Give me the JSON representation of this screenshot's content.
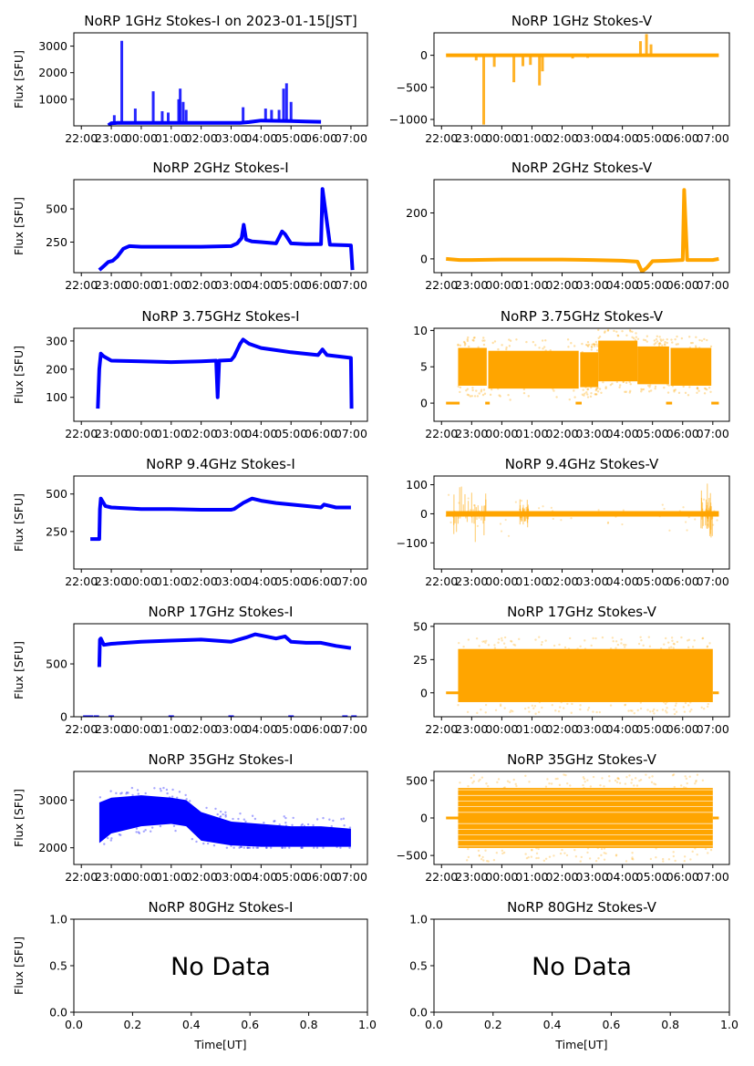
{
  "figure": {
    "main_title": "NoRP 1GHz Stokes-I on 2023-01-15[JST]",
    "ylabel": "Flux [SFU]",
    "xlabel": "Time[UT]",
    "no_data_text": "No Data"
  },
  "colors": {
    "stokes_i": "#0000ff",
    "stokes_v": "#ffa500"
  },
  "time_ticks": [
    "22:00",
    "23:00",
    "00:00",
    "01:00",
    "02:00",
    "03:00",
    "04:00",
    "05:00",
    "06:00",
    "07:00"
  ],
  "chart_data": [
    {
      "type": "scatter",
      "title": "NoRP 1GHz Stokes-I on 2023-01-15[JST]",
      "ylabel": "Flux [SFU]",
      "column": "left",
      "row": 0,
      "color_key": "stokes_i",
      "xlim_hours": [
        -0.25,
        9.55
      ],
      "ylim": [
        0,
        3500
      ],
      "yticks": [
        1000,
        2000,
        3000
      ],
      "x_start_hour": 0.9,
      "x_end_hour": 8.0,
      "series": [
        {
          "name": "baseline",
          "x": [
            0.9,
            1.0,
            1.2,
            1.5,
            2.0,
            2.5,
            3.0,
            3.6,
            4.0,
            4.5,
            5.0,
            5.3,
            5.6,
            6.0,
            6.5,
            7.0,
            7.5,
            8.0
          ],
          "y": [
            20,
            100,
            110,
            110,
            110,
            110,
            110,
            110,
            110,
            110,
            110,
            110,
            140,
            200,
            190,
            180,
            160,
            150
          ]
        },
        {
          "name": "flares",
          "x": [
            1.1,
            1.35,
            1.8,
            2.4,
            2.7,
            2.9,
            3.25,
            3.3,
            3.4,
            3.5,
            5.4,
            6.15,
            6.35,
            6.6,
            6.75,
            6.85,
            7.0
          ],
          "y": [
            400,
            3200,
            650,
            1300,
            550,
            500,
            1000,
            1400,
            900,
            600,
            700,
            650,
            600,
            600,
            1400,
            1600,
            900
          ]
        }
      ]
    },
    {
      "type": "scatter",
      "title": "NoRP 1GHz Stokes-V",
      "ylabel": "",
      "column": "right",
      "row": 0,
      "color_key": "stokes_v",
      "xlim_hours": [
        -0.25,
        9.55
      ],
      "ylim": [
        -1100,
        350
      ],
      "yticks": [
        -1000,
        -500,
        0
      ],
      "x_start_hour": 0.15,
      "x_end_hour": 9.2,
      "series": [
        {
          "name": "baseline",
          "x": [
            0.15,
            9.2
          ],
          "y": [
            0,
            0
          ]
        },
        {
          "name": "bursts",
          "x": [
            1.15,
            1.4,
            1.75,
            2.4,
            2.7,
            2.95,
            3.25,
            3.35,
            4.35,
            4.85,
            6.6,
            6.8,
            6.95
          ],
          "y": [
            -80,
            -1080,
            -180,
            -420,
            -170,
            -150,
            -470,
            -250,
            -50,
            -40,
            220,
            330,
            170
          ]
        }
      ]
    },
    {
      "type": "scatter",
      "title": "NoRP 2GHz Stokes-I",
      "ylabel": "Flux [SFU]",
      "column": "left",
      "row": 1,
      "color_key": "stokes_i",
      "xlim_hours": [
        -0.25,
        9.55
      ],
      "ylim": [
        20,
        720
      ],
      "yticks": [
        250,
        500
      ],
      "series": [
        {
          "name": "flux",
          "x": [
            0.6,
            0.75,
            0.9,
            1.05,
            1.2,
            1.4,
            1.6,
            2.0,
            3.0,
            4.0,
            5.0,
            5.2,
            5.35,
            5.42,
            5.5,
            5.7,
            6.0,
            6.5,
            6.7,
            6.8,
            7.0,
            7.5,
            8.0,
            8.05,
            8.3,
            9.0,
            9.05
          ],
          "y": [
            40,
            70,
            100,
            110,
            140,
            200,
            220,
            215,
            215,
            215,
            220,
            240,
            280,
            380,
            270,
            255,
            250,
            240,
            330,
            310,
            240,
            235,
            235,
            650,
            230,
            225,
            40
          ]
        }
      ]
    },
    {
      "type": "scatter",
      "title": "NoRP 2GHz Stokes-V",
      "ylabel": "",
      "column": "right",
      "row": 1,
      "color_key": "stokes_v",
      "xlim_hours": [
        -0.25,
        9.55
      ],
      "ylim": [
        -60,
        345
      ],
      "yticks": [
        0,
        200
      ],
      "series": [
        {
          "name": "flux",
          "x": [
            0.15,
            0.6,
            1.0,
            2.0,
            3.0,
            4.0,
            5.0,
            6.0,
            6.5,
            6.65,
            6.8,
            7.0,
            7.5,
            8.0,
            8.05,
            8.15,
            9.0,
            9.2
          ],
          "y": [
            0,
            -5,
            -5,
            -3,
            -3,
            -3,
            -5,
            -8,
            -12,
            -55,
            -40,
            -10,
            -8,
            -5,
            300,
            -5,
            -5,
            0
          ]
        }
      ]
    },
    {
      "type": "scatter",
      "title": "NoRP 3.75GHz Stokes-I",
      "ylabel": "Flux [SFU]",
      "column": "left",
      "row": 2,
      "color_key": "stokes_i",
      "xlim_hours": [
        -0.25,
        9.55
      ],
      "ylim": [
        15,
        345
      ],
      "yticks": [
        100,
        200,
        300
      ],
      "series": [
        {
          "name": "flux",
          "x": [
            0.55,
            0.6,
            0.65,
            0.75,
            1.0,
            2.0,
            3.0,
            4.0,
            4.5,
            4.55,
            4.6,
            5.0,
            5.1,
            5.3,
            5.4,
            5.6,
            6.0,
            7.0,
            7.9,
            8.05,
            8.2,
            9.0,
            9.02
          ],
          "y": [
            60,
            200,
            255,
            245,
            230,
            228,
            225,
            228,
            230,
            100,
            230,
            232,
            245,
            290,
            305,
            290,
            275,
            260,
            250,
            270,
            250,
            240,
            60
          ]
        }
      ]
    },
    {
      "type": "scatter",
      "title": "NoRP 3.75GHz Stokes-V",
      "ylabel": "",
      "column": "right",
      "row": 2,
      "color_key": "stokes_v",
      "xlim_hours": [
        -0.25,
        9.55
      ],
      "ylim": [
        -2.5,
        10.3
      ],
      "yticks": [
        0,
        5,
        10
      ],
      "bands": [
        {
          "x": [
            0.55,
            1.5
          ],
          "center": 5.0,
          "half": 2.6
        },
        {
          "x": [
            1.55,
            4.55
          ],
          "center": 4.6,
          "half": 2.6
        },
        {
          "x": [
            4.6,
            5.2
          ],
          "center": 4.6,
          "half": 2.4
        },
        {
          "x": [
            5.2,
            6.5
          ],
          "center": 5.8,
          "half": 2.8
        },
        {
          "x": [
            6.5,
            7.55
          ],
          "center": 5.2,
          "half": 2.6
        },
        {
          "x": [
            7.6,
            8.95
          ],
          "center": 5.0,
          "half": 2.6
        }
      ],
      "zero_segments": [
        [
          0.15,
          0.6
        ],
        [
          1.45,
          1.6
        ],
        [
          4.45,
          4.65
        ],
        [
          7.45,
          7.65
        ],
        [
          8.95,
          9.2
        ]
      ]
    },
    {
      "type": "scatter",
      "title": "NoRP 9.4GHz Stokes-I",
      "ylabel": "Flux [SFU]",
      "column": "left",
      "row": 3,
      "color_key": "stokes_i",
      "xlim_hours": [
        -0.25,
        9.55
      ],
      "ylim": [
        0,
        620
      ],
      "yticks": [
        250,
        500
      ],
      "series": [
        {
          "name": "flux",
          "x": [
            0.3,
            0.6,
            0.62,
            0.65,
            0.8,
            1.0,
            2.0,
            3.0,
            4.0,
            5.0,
            5.1,
            5.4,
            5.7,
            6.0,
            6.5,
            7.0,
            7.5,
            8.0,
            8.1,
            8.5,
            9.0
          ],
          "y": [
            200,
            200,
            400,
            470,
            420,
            410,
            400,
            400,
            395,
            395,
            400,
            440,
            470,
            455,
            440,
            430,
            420,
            410,
            430,
            410,
            410
          ]
        }
      ]
    },
    {
      "type": "scatter",
      "title": "NoRP 9.4GHz Stokes-V",
      "ylabel": "",
      "column": "right",
      "row": 3,
      "color_key": "stokes_v",
      "xlim_hours": [
        -0.25,
        9.55
      ],
      "ylim": [
        -190,
        130
      ],
      "yticks": [
        -100,
        0,
        100
      ],
      "baseline": 0,
      "x_start_hour": 0.15,
      "x_end_hour": 9.2,
      "noisy_regions": [
        [
          0.4,
          1.5,
          110
        ],
        [
          2.6,
          2.9,
          60
        ],
        [
          8.6,
          9.0,
          120
        ]
      ]
    },
    {
      "type": "scatter",
      "title": "NoRP 17GHz Stokes-I",
      "ylabel": "Flux [SFU]",
      "column": "left",
      "row": 4,
      "color_key": "stokes_i",
      "xlim_hours": [
        -0.25,
        9.55
      ],
      "ylim": [
        0,
        880
      ],
      "yticks": [
        0,
        500
      ],
      "series": [
        {
          "name": "flux",
          "x": [
            0.6,
            0.62,
            0.65,
            0.75,
            1.0,
            2.0,
            3.0,
            4.0,
            5.0,
            5.5,
            5.8,
            6.5,
            6.8,
            7.0,
            7.5,
            8.0,
            8.5,
            9.0
          ],
          "y": [
            470,
            730,
            740,
            680,
            690,
            710,
            720,
            730,
            710,
            750,
            780,
            740,
            760,
            710,
            700,
            700,
            670,
            650
          ]
        }
      ],
      "zero_markers_hours": [
        0.15,
        0.3,
        0.5,
        1.0,
        3.0,
        5.0,
        7.0,
        8.8,
        9.1
      ]
    },
    {
      "type": "scatter",
      "title": "NoRP 17GHz Stokes-V",
      "ylabel": "",
      "column": "right",
      "row": 4,
      "color_key": "stokes_v",
      "xlim_hours": [
        -0.25,
        9.55
      ],
      "ylim": [
        -18,
        52
      ],
      "yticks": [
        0,
        25,
        50
      ],
      "band": {
        "x": [
          0.55,
          9.0
        ],
        "center": 13,
        "half": 20
      },
      "zero_segments": [
        [
          0.15,
          0.6
        ],
        [
          9.0,
          9.2
        ]
      ]
    },
    {
      "type": "scatter",
      "title": "NoRP 35GHz Stokes-I",
      "ylabel": "Flux [SFU]",
      "column": "left",
      "row": 5,
      "color_key": "stokes_i",
      "xlim_hours": [
        -0.25,
        9.55
      ],
      "ylim": [
        1650,
        3600
      ],
      "yticks": [
        2000,
        3000
      ],
      "band_top": {
        "x": [
          0.6,
          1.0,
          2.0,
          3.0,
          3.5,
          4.0,
          5.0,
          6.0,
          7.0,
          8.0,
          9.0
        ],
        "y": [
          2950,
          3050,
          3100,
          3050,
          3000,
          2750,
          2550,
          2500,
          2450,
          2450,
          2400
        ]
      },
      "band_bottom": {
        "x": [
          0.6,
          1.0,
          2.0,
          3.0,
          3.5,
          4.0,
          5.0,
          6.0,
          7.0,
          8.0,
          9.0
        ],
        "y": [
          2100,
          2300,
          2450,
          2500,
          2450,
          2150,
          2050,
          2020,
          2020,
          2020,
          2020
        ]
      }
    },
    {
      "type": "scatter",
      "title": "NoRP 35GHz Stokes-V",
      "ylabel": "",
      "column": "right",
      "row": 5,
      "color_key": "stokes_v",
      "xlim_hours": [
        -0.25,
        9.55
      ],
      "ylim": [
        -620,
        620
      ],
      "yticks": [
        -500,
        0,
        500
      ],
      "band": {
        "x": [
          0.55,
          9.0
        ],
        "center": 0,
        "half": 400
      },
      "zero_segments": [
        [
          0.15,
          0.6
        ],
        [
          9.0,
          9.2
        ]
      ]
    },
    {
      "type": "scatter",
      "title": "NoRP 80GHz Stokes-I",
      "ylabel": "Flux [SFU]",
      "xlabel": "Time[UT]",
      "column": "left",
      "row": 6,
      "no_data": true,
      "xlim": [
        0,
        1
      ],
      "ylim": [
        0,
        1
      ],
      "xticks": [
        "0.0",
        "0.2",
        "0.4",
        "0.6",
        "0.8",
        "1.0"
      ],
      "yticks": [
        "0.0",
        "0.5",
        "1.0"
      ]
    },
    {
      "type": "scatter",
      "title": "NoRP 80GHz Stokes-V",
      "ylabel": "",
      "xlabel": "Time[UT]",
      "column": "right",
      "row": 6,
      "no_data": true,
      "xlim": [
        0,
        1
      ],
      "ylim": [
        0,
        1
      ],
      "xticks": [
        "0.0",
        "0.2",
        "0.4",
        "0.6",
        "0.8",
        "1.0"
      ],
      "yticks": [
        "0.0",
        "0.5",
        "1.0"
      ]
    }
  ]
}
